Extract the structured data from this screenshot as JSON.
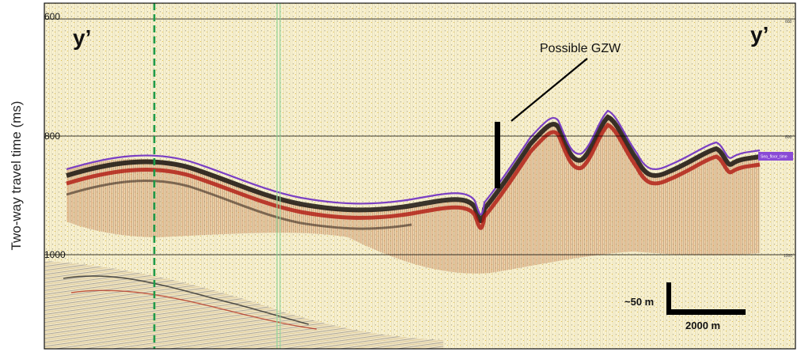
{
  "axis": {
    "ylabel": "Two-way travel time (ms)",
    "ticks": [
      "600",
      "800",
      "1000"
    ],
    "ticks_right": [
      "600",
      "800",
      "1000"
    ]
  },
  "labels": {
    "left_corner": "y’",
    "right_corner": "y’",
    "annotation": "Possible GZW",
    "horizon_tag": "Sea_floor_time"
  },
  "scale_bar": {
    "vertical": "~50 m",
    "horizontal": "2000 m"
  },
  "colors": {
    "background": "#fbf5d8",
    "seafloor_pick": "#7a3fc4",
    "marker_line": "#1e9a48",
    "guide_line": "#8fd69a",
    "reflector_red": "#b01810",
    "reflector_dark": "#1a1410"
  }
}
